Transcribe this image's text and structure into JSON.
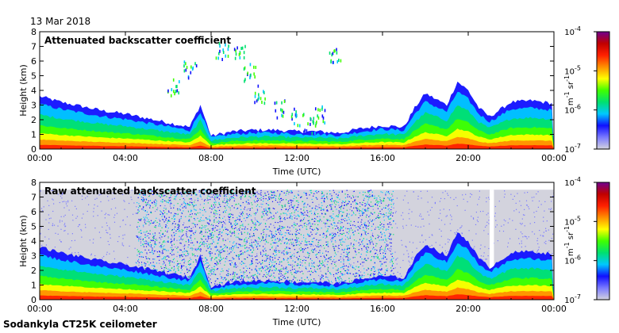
{
  "header": {
    "date": "13 Mar 2018"
  },
  "footer": {
    "instrument": "Sodankyla CT25K ceilometer"
  },
  "chart_data": [
    {
      "type": "heatmap",
      "title": "Attenuated backscatter coefficient",
      "xlabel": "Time (UTC)",
      "ylabel": "Height (km)",
      "xticks": [
        "00:00",
        "04:00",
        "08:00",
        "12:00",
        "16:00",
        "20:00",
        "00:00"
      ],
      "xlim": [
        0,
        24
      ],
      "yticks": [
        0,
        1,
        2,
        3,
        4,
        5,
        6,
        7,
        8
      ],
      "ylim": [
        0,
        8
      ],
      "colorbar": {
        "scale": "log",
        "range": [
          1e-07,
          0.0001
        ],
        "ticks": [
          "10",
          "10",
          "10",
          "10"
        ],
        "tick_exponents": [
          "-7",
          "-6",
          "-5",
          "-4"
        ],
        "unit": "m",
        "unit_exp1": "-1",
        "unit2": "sr",
        "unit_exp2": "-1"
      },
      "noise_background": false,
      "boundary_layer_top_km": [
        [
          0,
          3.6
        ],
        [
          1,
          3.2
        ],
        [
          2,
          2.9
        ],
        [
          3,
          2.6
        ],
        [
          4,
          2.4
        ],
        [
          5,
          2.1
        ],
        [
          6,
          1.8
        ],
        [
          7,
          1.5
        ],
        [
          7.5,
          3.0
        ],
        [
          8,
          0.9
        ],
        [
          9,
          1.2
        ],
        [
          10,
          1.3
        ],
        [
          11,
          1.3
        ],
        [
          12,
          1.2
        ],
        [
          13,
          1.2
        ],
        [
          14,
          1.1
        ],
        [
          15,
          1.4
        ],
        [
          16,
          1.6
        ],
        [
          17,
          1.5
        ],
        [
          17.5,
          2.8
        ],
        [
          18,
          3.8
        ],
        [
          19,
          3.0
        ],
        [
          19.5,
          4.6
        ],
        [
          20,
          4.0
        ],
        [
          20.5,
          2.8
        ],
        [
          21,
          2.2
        ],
        [
          22,
          3.2
        ],
        [
          23,
          3.3
        ],
        [
          24,
          3.1
        ]
      ],
      "scattered_cloud_km": [
        [
          6.2,
          4.3
        ],
        [
          7.0,
          5.5
        ],
        [
          8.5,
          6.8
        ],
        [
          9.3,
          6.6
        ],
        [
          9.8,
          5.3
        ],
        [
          10.2,
          3.8
        ],
        [
          11.2,
          2.8
        ],
        [
          13.8,
          6.5
        ],
        [
          13.0,
          2.4
        ],
        [
          12.0,
          2.3
        ],
        [
          12.6,
          1.6
        ]
      ]
    },
    {
      "type": "heatmap",
      "title": "Raw attenuated backscatter coefficient",
      "xlabel": "Time (UTC)",
      "ylabel": "Height (km)",
      "xticks": [
        "00:00",
        "04:00",
        "08:00",
        "12:00",
        "16:00",
        "20:00",
        "00:00"
      ],
      "xlim": [
        0,
        24
      ],
      "yticks": [
        0,
        1,
        2,
        3,
        4,
        5,
        6,
        7,
        8
      ],
      "ylim": [
        0,
        8
      ],
      "colorbar": {
        "scale": "log",
        "range": [
          1e-07,
          0.0001
        ],
        "ticks": [
          "10",
          "10",
          "10",
          "10"
        ],
        "tick_exponents": [
          "-7",
          "-6",
          "-5",
          "-4"
        ],
        "unit": "m",
        "unit_exp1": "-1",
        "unit2": "sr",
        "unit_exp2": "-1"
      },
      "noise_background": true,
      "noise_dense_hours": [
        4.5,
        16.5
      ],
      "data_gap_hours": [
        21.0,
        21.2
      ],
      "boundary_layer_top_km": [
        [
          0,
          3.6
        ],
        [
          1,
          3.2
        ],
        [
          2,
          2.9
        ],
        [
          3,
          2.6
        ],
        [
          4,
          2.4
        ],
        [
          5,
          2.1
        ],
        [
          6,
          1.8
        ],
        [
          7,
          1.5
        ],
        [
          7.5,
          3.0
        ],
        [
          8,
          0.9
        ],
        [
          9,
          1.2
        ],
        [
          10,
          1.3
        ],
        [
          11,
          1.3
        ],
        [
          12,
          1.2
        ],
        [
          13,
          1.2
        ],
        [
          14,
          1.1
        ],
        [
          15,
          1.4
        ],
        [
          16,
          1.6
        ],
        [
          17,
          1.5
        ],
        [
          17.5,
          2.8
        ],
        [
          18,
          3.8
        ],
        [
          19,
          3.0
        ],
        [
          19.5,
          4.6
        ],
        [
          20,
          4.0
        ],
        [
          20.5,
          2.8
        ],
        [
          21,
          2.2
        ],
        [
          22,
          3.2
        ],
        [
          23,
          3.3
        ],
        [
          24,
          3.1
        ]
      ]
    }
  ],
  "colors": {
    "palette": [
      "#ffffff",
      "#d3d3dd",
      "#7a7aff",
      "#1010ff",
      "#00c8ff",
      "#00e070",
      "#40ff00",
      "#ffff00",
      "#ff9000",
      "#ff2000",
      "#c00000",
      "#700090"
    ]
  }
}
